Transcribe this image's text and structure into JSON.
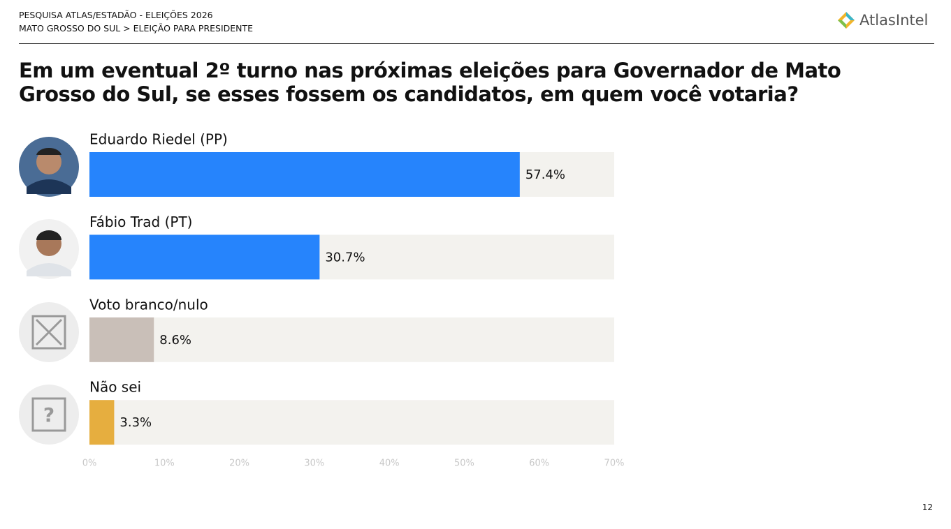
{
  "header": {
    "line1": "PESQUISA ATLAS/ESTADÃO - ELEIÇÕES 2026",
    "line2": "MATO GROSSO DO SUL > ELEIÇÃO PARA PRESIDENTE",
    "logo": "AtlasIntel"
  },
  "chart_data": {
    "type": "bar",
    "orientation": "horizontal",
    "title": "Em um eventual 2º turno nas próximas eleições para Governador de Mato Grosso do Sul, se esses fossem os candidatos, em quem você votaria?",
    "categories": [
      "Eduardo Riedel (PP)",
      "Fábio Trad (PT)",
      "Voto branco/nulo",
      "Não sei"
    ],
    "values": [
      57.4,
      30.7,
      8.6,
      3.3
    ],
    "value_labels": [
      "57.4%",
      "30.7%",
      "8.6%",
      "3.3%"
    ],
    "colors": [
      "#2684fc",
      "#2684fc",
      "#c9bfb8",
      "#e6ae3f"
    ],
    "xlim": [
      0,
      70
    ],
    "xticks": [
      {
        "value": 0,
        "label": "0%"
      },
      {
        "value": 10,
        "label": "10%"
      },
      {
        "value": 20,
        "label": "20%"
      },
      {
        "value": 30,
        "label": "30%"
      },
      {
        "value": 40,
        "label": "40%"
      },
      {
        "value": 50,
        "label": "50%"
      },
      {
        "value": 60,
        "label": "60%"
      },
      {
        "value": 70,
        "label": "70%"
      }
    ]
  },
  "page_number": "12"
}
